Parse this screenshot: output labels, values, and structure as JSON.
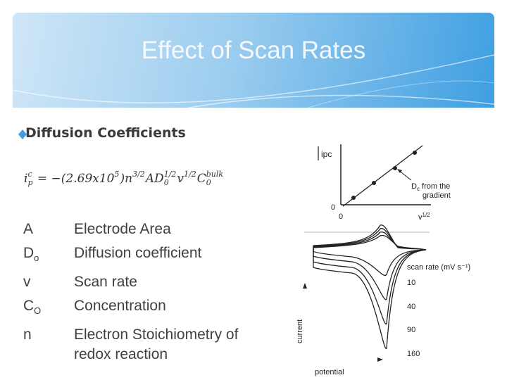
{
  "header": {
    "title": "Effect of Scan Rates"
  },
  "body": {
    "bullet": "Diffusion Coefficients",
    "equation": [
      {
        "base": "i",
        "sup": "c",
        "sub": "p"
      },
      {
        "base": " = −(2.69x10",
        "sup": "5"
      },
      {
        "base": ")n",
        "sup": "3/2"
      },
      {
        "base": "AD",
        "sup": "1/2",
        "sub": "0"
      },
      {
        "base": "v",
        "sup": "1/2"
      },
      {
        "base": "C",
        "sup": "bulk",
        "sub": "0"
      }
    ],
    "definitions": [
      {
        "symbol": "A",
        "meaning": "Electrode Area"
      },
      {
        "symbol": "D",
        "sub": "o",
        "meaning": "Diffusion coefficient"
      },
      {
        "symbol": "v",
        "meaning": "Scan rate"
      },
      {
        "symbol": "C",
        "sub": "O",
        "meaning": "Concentration"
      },
      {
        "symbol": "n",
        "meaning": "Electron Stoichiometry of redox reaction"
      }
    ]
  },
  "figure": {
    "inset": {
      "y_label": "ipc",
      "origin_y": "0",
      "origin_x": "0",
      "x_label": "v",
      "x_label_sup": "1/2",
      "annotation_sym": "D",
      "annotation_sub": "c",
      "annotation_line1": " from the",
      "annotation_line2": "gradient"
    },
    "cv": {
      "legend_title": "scan rate (mV s⁻¹)",
      "scan_rates": [
        10,
        40,
        90,
        160
      ],
      "y_label": "current",
      "x_label": "potential"
    }
  }
}
